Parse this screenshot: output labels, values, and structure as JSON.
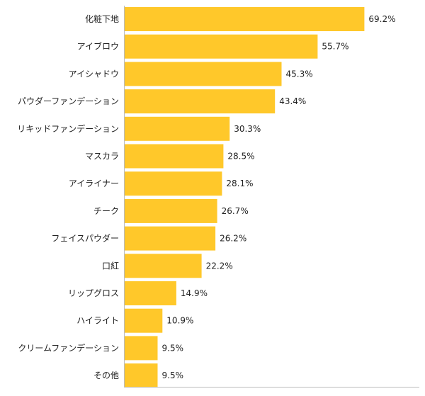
{
  "chart_data": {
    "type": "bar",
    "orientation": "horizontal",
    "categories": [
      "化粧下地",
      "アイブロウ",
      "アイシャドウ",
      "パウダーファンデーション",
      "リキッドファンデーション",
      "マスカラ",
      "アイライナー",
      "チーク",
      "フェイスパウダー",
      "口紅",
      "リップグロス",
      "ハイライト",
      "クリームファンデーション",
      "その他"
    ],
    "values": [
      69.2,
      55.7,
      45.3,
      43.4,
      30.3,
      28.5,
      28.1,
      26.7,
      26.2,
      22.2,
      14.9,
      10.9,
      9.5,
      9.5
    ],
    "value_labels": [
      "69.2%",
      "55.7%",
      "45.3%",
      "43.4%",
      "30.3%",
      "28.5%",
      "28.1%",
      "26.7%",
      "26.2%",
      "22.2%",
      "14.9%",
      "10.9%",
      "9.5%",
      "9.5%"
    ],
    "xlim": [
      0,
      100
    ],
    "grid": false,
    "legend": "none",
    "bar_color": "#ffc82a"
  }
}
